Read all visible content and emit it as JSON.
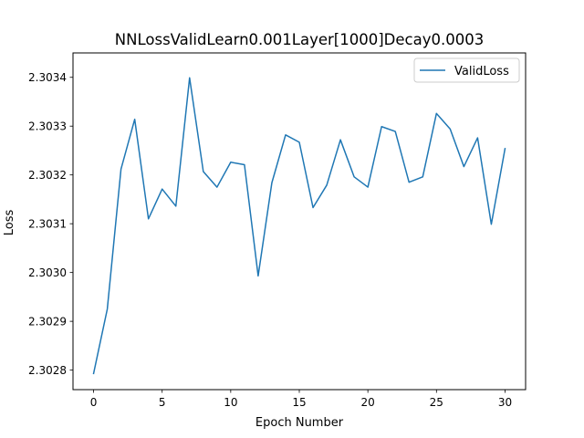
{
  "chart_data": {
    "type": "line",
    "title": "NNLossValidLearn0.001Layer[1000]Decay0.0003",
    "xlabel": "Epoch Number",
    "ylabel": "Loss",
    "xlim": [
      -1.5,
      31.5
    ],
    "ylim": [
      2.30276,
      2.30345
    ],
    "xticks": [
      0,
      5,
      10,
      15,
      20,
      25,
      30
    ],
    "xtick_labels": [
      "0",
      "5",
      "10",
      "15",
      "20",
      "25",
      "30"
    ],
    "yticks": [
      2.3028,
      2.3029,
      2.303,
      2.3031,
      2.3032,
      2.3033,
      2.3034
    ],
    "ytick_labels": [
      "2.3028",
      "2.3029",
      "2.3030",
      "2.3031",
      "2.3032",
      "2.3033",
      "2.3034"
    ],
    "grid": false,
    "legend_position": "top-right",
    "series": [
      {
        "name": "ValidLoss",
        "color": "#1f77b4",
        "x": [
          0,
          1,
          2,
          3,
          4,
          5,
          6,
          7,
          8,
          9,
          10,
          11,
          12,
          13,
          14,
          15,
          16,
          17,
          18,
          19,
          20,
          21,
          22,
          23,
          24,
          25,
          26,
          27,
          28,
          29,
          30
        ],
        "y": [
          2.302793,
          2.302925,
          2.303212,
          2.303314,
          2.30311,
          2.303171,
          2.303136,
          2.303399,
          2.303207,
          2.303175,
          2.303226,
          2.303221,
          2.302993,
          2.303184,
          2.303282,
          2.303267,
          2.303133,
          2.303179,
          2.303272,
          2.303196,
          2.303175,
          2.303299,
          2.303289,
          2.303185,
          2.303196,
          2.303326,
          2.303294,
          2.303217,
          2.303276,
          2.303099,
          2.303254
        ]
      }
    ]
  }
}
